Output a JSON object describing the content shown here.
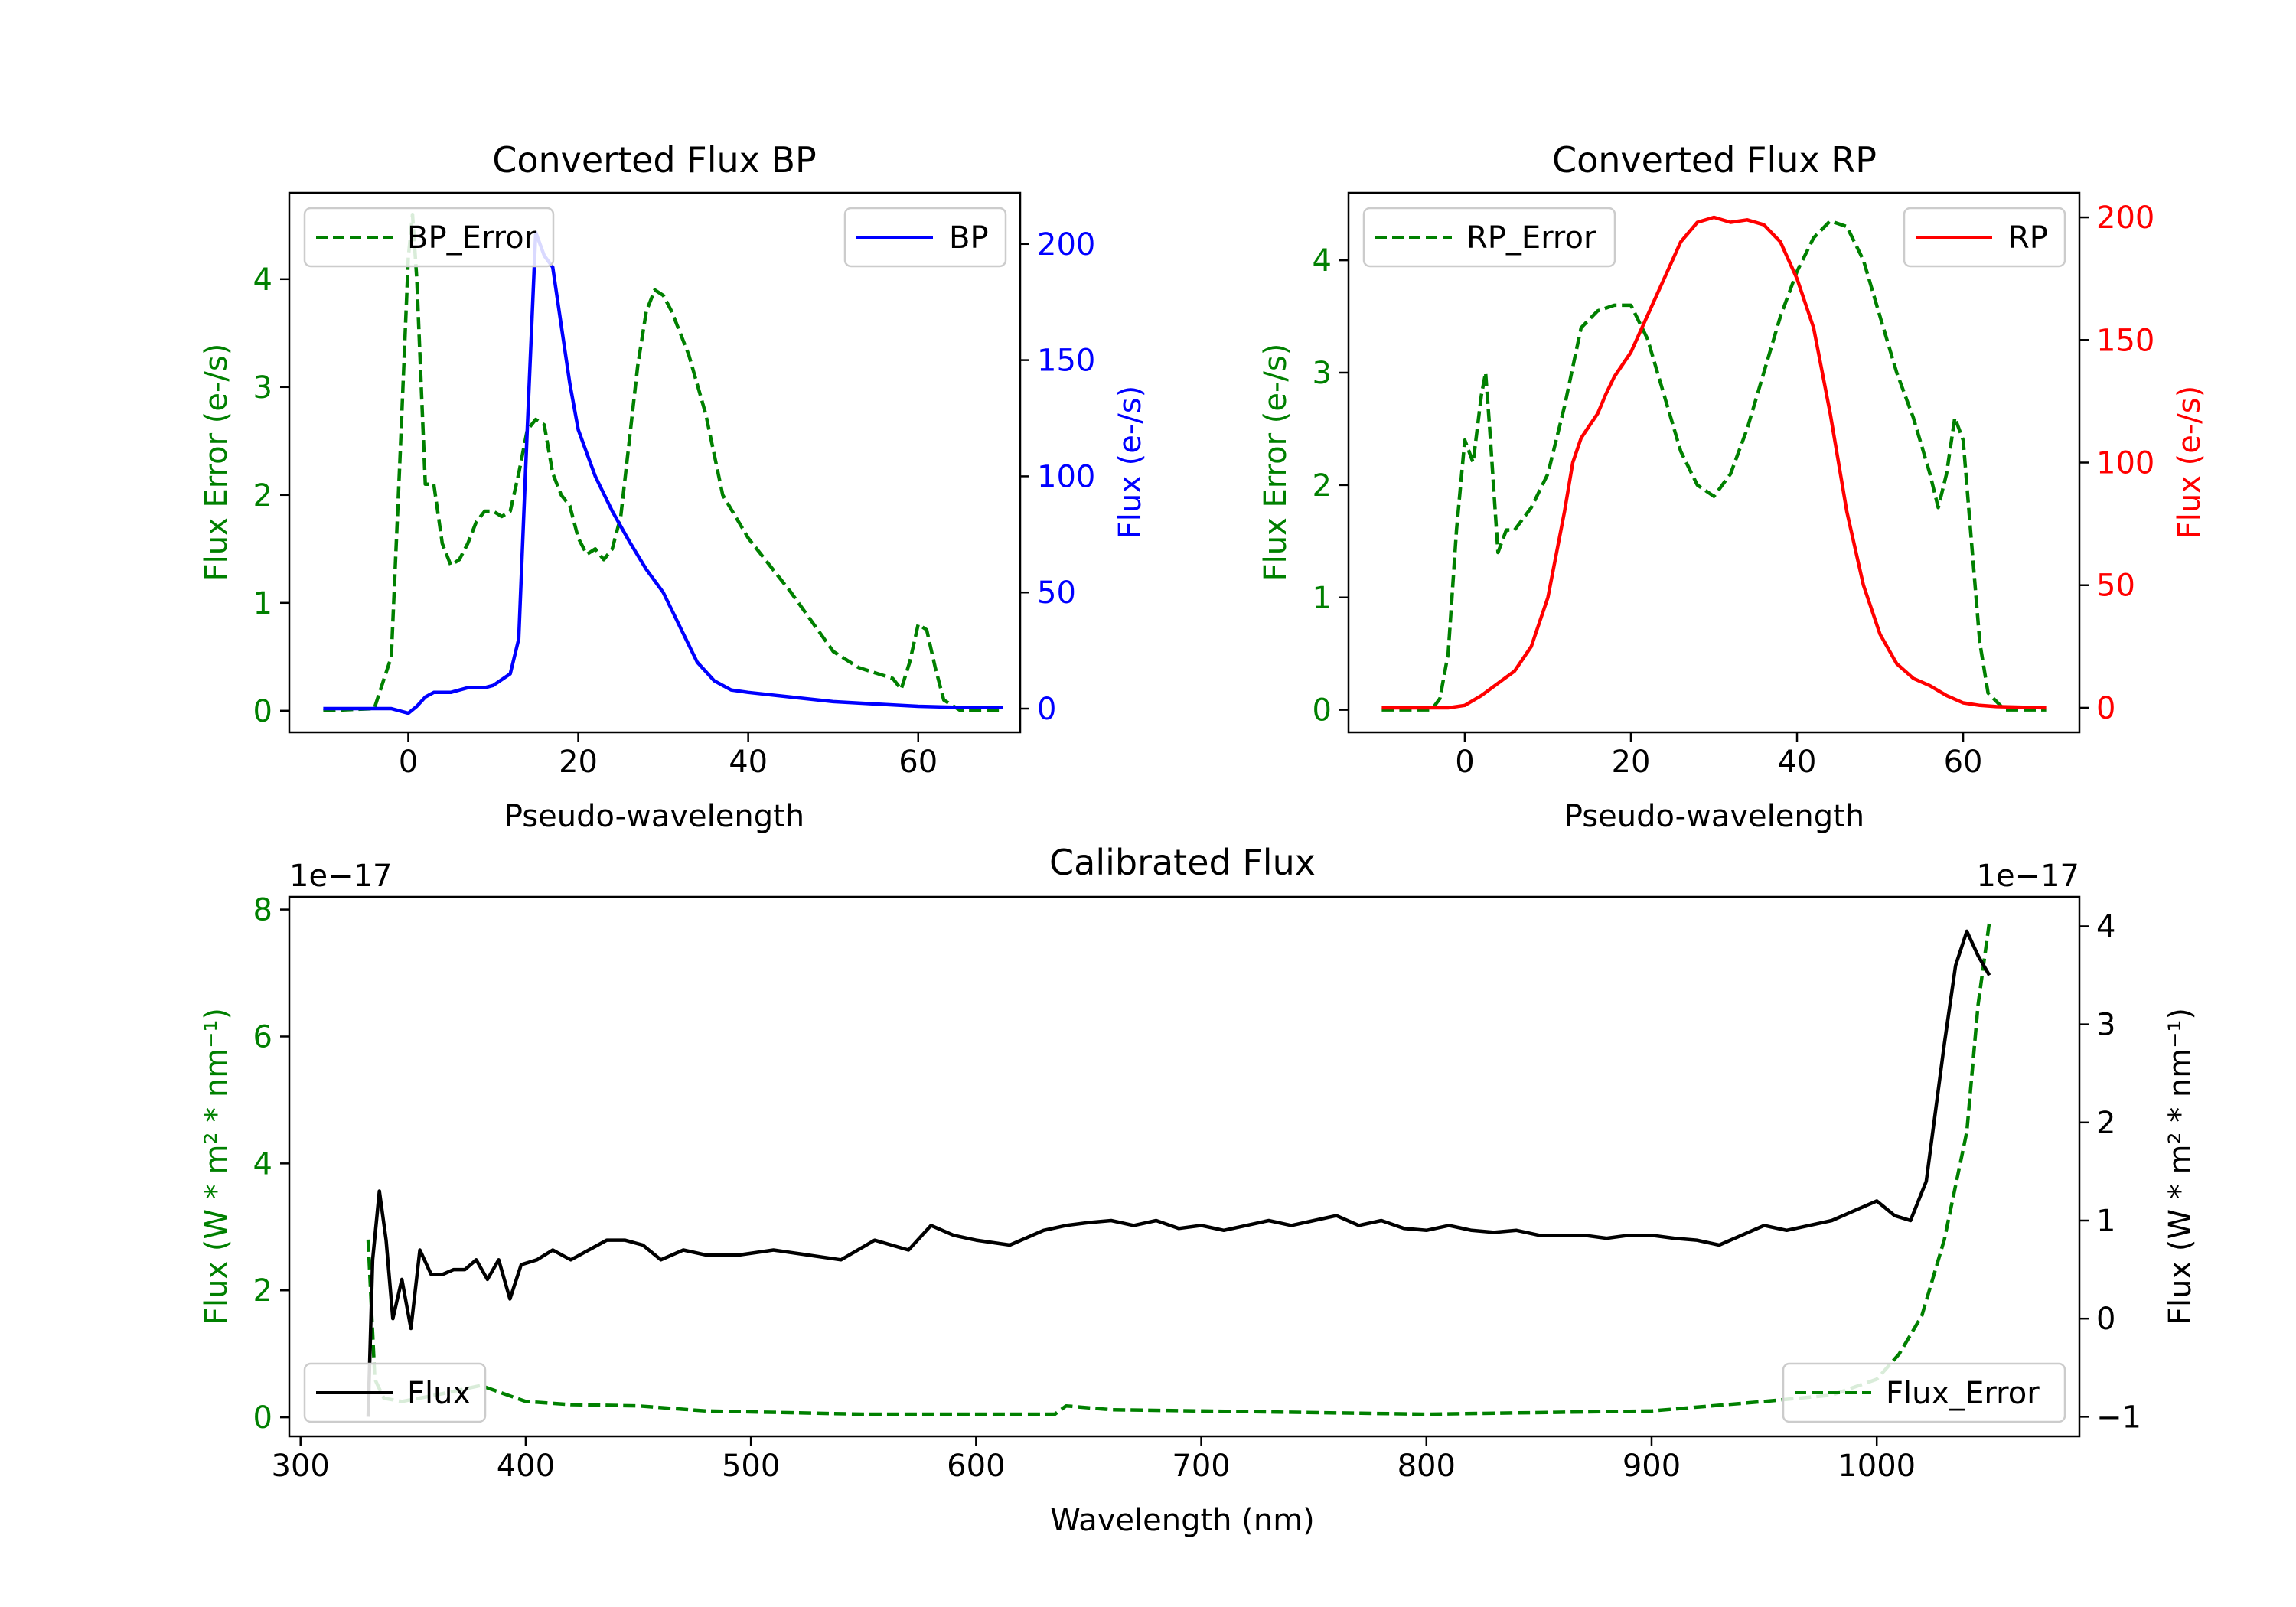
{
  "colors": {
    "bp_error": "#008000",
    "bp_flux": "#0000ff",
    "rp_error": "#008000",
    "rp_flux": "#ff0000",
    "cal_error": "#008000",
    "cal_flux": "#000000"
  },
  "chart_data": [
    {
      "type": "line",
      "title": "Converted Flux BP",
      "xlabel": "Pseudo-wavelength",
      "ylabel_left": "Flux Error (e-/s)",
      "ylabel_right": "Flux (e-/s)",
      "xlim": [
        -14,
        72
      ],
      "ylim_left": [
        -0.2,
        4.8
      ],
      "ylim_right": [
        -10.2,
        222
      ],
      "x_ticks": [
        0,
        20,
        40,
        60
      ],
      "y_ticks_left": [
        0,
        1,
        2,
        3,
        4
      ],
      "y_ticks_right": [
        0,
        50,
        100,
        150,
        200
      ],
      "legend_left": {
        "label": "BP_Error",
        "placement": "upper-left"
      },
      "legend_right": {
        "label": "BP",
        "placement": "upper-right"
      },
      "series": [
        {
          "name": "BP_Error",
          "axis": "left",
          "style": "dashed",
          "x": [
            -10,
            -4,
            -2,
            -1,
            0,
            0.5,
            1,
            2,
            3,
            4,
            5,
            6,
            7,
            8,
            9,
            10,
            11,
            12,
            13,
            14,
            15,
            16,
            17,
            18,
            19,
            20,
            21,
            22,
            23,
            24,
            25,
            26,
            27,
            28,
            29,
            30,
            31,
            33,
            35,
            37,
            40,
            45,
            50,
            53,
            55,
            57,
            58,
            59,
            60,
            61,
            62,
            63,
            65,
            70
          ],
          "values": [
            0.0,
            0.02,
            0.5,
            2.3,
            4.2,
            4.6,
            4.0,
            2.1,
            2.1,
            1.55,
            1.35,
            1.4,
            1.55,
            1.75,
            1.85,
            1.85,
            1.8,
            1.85,
            2.2,
            2.6,
            2.7,
            2.65,
            2.2,
            2.0,
            1.9,
            1.6,
            1.45,
            1.5,
            1.4,
            1.5,
            1.8,
            2.5,
            3.2,
            3.7,
            3.9,
            3.85,
            3.7,
            3.3,
            2.75,
            2.0,
            1.6,
            1.1,
            0.55,
            0.4,
            0.35,
            0.3,
            0.2,
            0.45,
            0.8,
            0.75,
            0.4,
            0.1,
            0.0,
            0.0
          ]
        },
        {
          "name": "BP",
          "axis": "right",
          "style": "solid",
          "x": [
            -10,
            -2,
            0,
            1,
            2,
            3,
            5,
            7,
            9,
            10,
            12,
            13,
            14,
            15,
            16,
            17,
            18,
            19,
            20,
            21,
            22,
            24,
            26,
            28,
            30,
            32,
            34,
            36,
            38,
            40,
            45,
            50,
            55,
            60,
            65,
            70
          ],
          "values": [
            0,
            0,
            -2,
            1,
            5,
            7,
            7,
            9,
            9,
            10,
            15,
            30,
            120,
            205,
            195,
            190,
            165,
            140,
            120,
            110,
            100,
            85,
            72,
            60,
            50,
            35,
            20,
            12,
            8,
            7,
            5,
            3,
            2,
            1,
            0.5,
            0.5
          ]
        }
      ]
    },
    {
      "type": "line",
      "title": "Converted Flux RP",
      "xlabel": "Pseudo-wavelength",
      "ylabel_left": "Flux Error (e-/s)",
      "ylabel_right": "Flux (e-/s)",
      "xlim": [
        -14,
        74
      ],
      "ylim_left": [
        -0.2,
        4.6
      ],
      "ylim_right": [
        -10,
        210
      ],
      "x_ticks": [
        0,
        20,
        40,
        60
      ],
      "y_ticks_left": [
        0,
        1,
        2,
        3,
        4
      ],
      "y_ticks_right": [
        0,
        50,
        100,
        150,
        200
      ],
      "legend_left": {
        "label": "RP_Error",
        "placement": "upper-left"
      },
      "legend_right": {
        "label": "RP",
        "placement": "upper-right"
      },
      "series": [
        {
          "name": "RP_Error",
          "axis": "left",
          "style": "dashed",
          "x": [
            -10,
            -4,
            -3,
            -2,
            -1,
            0,
            0.5,
            1,
            2,
            2.5,
            3,
            4,
            5,
            6,
            8,
            10,
            12,
            14,
            16,
            18,
            20,
            22,
            24,
            26,
            28,
            30,
            32,
            34,
            36,
            38,
            40,
            42,
            44,
            46,
            48,
            50,
            52,
            54,
            56,
            57,
            58,
            59,
            60,
            61,
            62,
            63,
            65,
            70
          ],
          "values": [
            0.0,
            0.0,
            0.1,
            0.5,
            1.6,
            2.4,
            2.3,
            2.2,
            2.8,
            3.0,
            2.5,
            1.4,
            1.6,
            1.6,
            1.8,
            2.1,
            2.7,
            3.4,
            3.55,
            3.6,
            3.6,
            3.3,
            2.8,
            2.3,
            2.0,
            1.9,
            2.1,
            2.5,
            3.0,
            3.5,
            3.9,
            4.2,
            4.35,
            4.3,
            4.0,
            3.5,
            3.0,
            2.6,
            2.1,
            1.8,
            2.1,
            2.6,
            2.4,
            1.5,
            0.6,
            0.15,
            0.0,
            0.0
          ]
        },
        {
          "name": "RP",
          "axis": "right",
          "style": "solid",
          "x": [
            -10,
            -2,
            0,
            2,
            4,
            6,
            8,
            10,
            12,
            13,
            14,
            15,
            16,
            17,
            18,
            20,
            22,
            24,
            26,
            28,
            30,
            32,
            34,
            36,
            38,
            40,
            42,
            44,
            46,
            48,
            50,
            52,
            54,
            56,
            58,
            60,
            62,
            64,
            70
          ],
          "values": [
            0,
            0,
            1,
            5,
            10,
            15,
            25,
            45,
            80,
            100,
            110,
            115,
            120,
            128,
            135,
            145,
            160,
            175,
            190,
            198,
            200,
            198,
            199,
            197,
            190,
            175,
            155,
            120,
            80,
            50,
            30,
            18,
            12,
            9,
            5,
            2,
            1,
            0.5,
            0
          ]
        }
      ]
    },
    {
      "type": "line",
      "title": "Calibrated Flux",
      "xlabel": "Wavelength (nm)",
      "ylabel_left": "Flux (W * m² * nm⁻¹)",
      "ylabel_right": "Flux (W * m² * nm⁻¹)",
      "left_scale_label": "1e−17",
      "right_scale_label": "1e−17",
      "xlim": [
        295,
        1090
      ],
      "ylim_left": [
        -0.3,
        8.2
      ],
      "ylim_right": [
        -1.2,
        4.3
      ],
      "x_ticks": [
        300,
        400,
        500,
        600,
        700,
        800,
        900,
        1000
      ],
      "y_ticks_left": [
        0,
        2,
        4,
        6,
        8
      ],
      "y_ticks_right": [
        -1,
        0,
        1,
        2,
        3,
        4
      ],
      "legend_left": {
        "label": "Flux",
        "placement": "lower-left"
      },
      "legend_right": {
        "label": "Flux_Error",
        "placement": "lower-right"
      },
      "series": [
        {
          "name": "Flux_Error",
          "axis": "left",
          "style": "dashed",
          "x": [
            330,
            333,
            337,
            345,
            360,
            380,
            400,
            420,
            450,
            480,
            550,
            600,
            635,
            640,
            660,
            700,
            800,
            900,
            950,
            980,
            1000,
            1010,
            1020,
            1030,
            1040,
            1045,
            1050
          ],
          "values": [
            2.8,
            0.6,
            0.3,
            0.25,
            0.35,
            0.5,
            0.25,
            0.2,
            0.18,
            0.1,
            0.05,
            0.05,
            0.05,
            0.18,
            0.12,
            0.1,
            0.05,
            0.1,
            0.25,
            0.35,
            0.6,
            1.0,
            1.6,
            2.8,
            4.5,
            6.5,
            7.8
          ]
        },
        {
          "name": "Flux",
          "axis": "right",
          "style": "solid",
          "x": [
            330,
            332,
            335,
            338,
            341,
            345,
            349,
            353,
            358,
            363,
            368,
            373,
            378,
            383,
            388,
            393,
            398,
            405,
            412,
            420,
            428,
            436,
            444,
            452,
            460,
            470,
            480,
            495,
            510,
            525,
            540,
            555,
            570,
            580,
            590,
            600,
            615,
            630,
            640,
            650,
            660,
            670,
            680,
            690,
            700,
            710,
            720,
            730,
            740,
            750,
            760,
            770,
            780,
            790,
            800,
            810,
            820,
            830,
            840,
            850,
            860,
            870,
            880,
            890,
            900,
            910,
            920,
            930,
            940,
            950,
            960,
            970,
            980,
            990,
            1000,
            1008,
            1015,
            1022,
            1030,
            1035,
            1040,
            1045,
            1050
          ],
          "values": [
            -1.0,
            0.6,
            1.3,
            0.8,
            0.0,
            0.4,
            -0.1,
            0.7,
            0.45,
            0.45,
            0.5,
            0.5,
            0.6,
            0.4,
            0.6,
            0.2,
            0.55,
            0.6,
            0.7,
            0.6,
            0.7,
            0.8,
            0.8,
            0.75,
            0.6,
            0.7,
            0.65,
            0.65,
            0.7,
            0.65,
            0.6,
            0.8,
            0.7,
            0.95,
            0.85,
            0.8,
            0.75,
            0.9,
            0.95,
            0.98,
            1.0,
            0.95,
            1.0,
            0.92,
            0.95,
            0.9,
            0.95,
            1.0,
            0.95,
            1.0,
            1.05,
            0.95,
            1.0,
            0.92,
            0.9,
            0.95,
            0.9,
            0.88,
            0.9,
            0.85,
            0.85,
            0.85,
            0.82,
            0.85,
            0.85,
            0.82,
            0.8,
            0.75,
            0.85,
            0.95,
            0.9,
            0.95,
            1.0,
            1.1,
            1.2,
            1.05,
            1.0,
            1.4,
            2.8,
            3.6,
            3.95,
            3.7,
            3.5
          ]
        }
      ]
    }
  ]
}
